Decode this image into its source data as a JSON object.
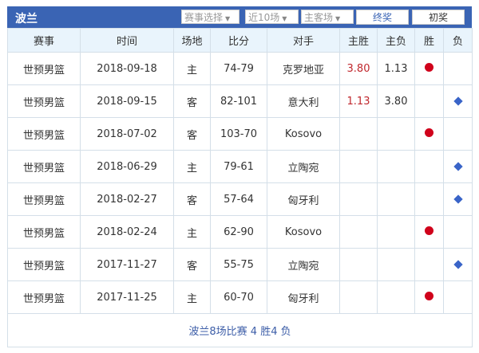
{
  "header": {
    "title": "波兰",
    "filters": [
      "赛事选择",
      "近10场",
      "主客场"
    ],
    "buttons": [
      "终奖",
      "初奖"
    ]
  },
  "columns": [
    "赛事",
    "时间",
    "场地",
    "比分",
    "对手",
    "主胜",
    "主负",
    "胜",
    "负"
  ],
  "rows": [
    {
      "league": "世预男篮",
      "date": "2018-09-18",
      "venue": "主",
      "score": "74-79",
      "opponent": "克罗地亚",
      "home_win": "3.80",
      "home_loss": "1.13",
      "result": "win"
    },
    {
      "league": "世预男篮",
      "date": "2018-09-15",
      "venue": "客",
      "score": "82-101",
      "opponent": "意大利",
      "home_win": "1.13",
      "home_loss": "3.80",
      "result": "loss"
    },
    {
      "league": "世预男篮",
      "date": "2018-07-02",
      "venue": "客",
      "score": "103-70",
      "opponent": "Kosovo",
      "home_win": "",
      "home_loss": "",
      "result": "win"
    },
    {
      "league": "世预男篮",
      "date": "2018-06-29",
      "venue": "主",
      "score": "79-61",
      "opponent": "立陶宛",
      "home_win": "",
      "home_loss": "",
      "result": "loss"
    },
    {
      "league": "世预男篮",
      "date": "2018-02-27",
      "venue": "客",
      "score": "57-64",
      "opponent": "匈牙利",
      "home_win": "",
      "home_loss": "",
      "result": "loss"
    },
    {
      "league": "世预男篮",
      "date": "2018-02-24",
      "venue": "主",
      "score": "62-90",
      "opponent": "Kosovo",
      "home_win": "",
      "home_loss": "",
      "result": "win"
    },
    {
      "league": "世预男篮",
      "date": "2017-11-27",
      "venue": "客",
      "score": "55-75",
      "opponent": "立陶宛",
      "home_win": "",
      "home_loss": "",
      "result": "loss"
    },
    {
      "league": "世预男篮",
      "date": "2017-11-25",
      "venue": "主",
      "score": "60-70",
      "opponent": "匈牙利",
      "home_win": "",
      "home_loss": "",
      "result": "win"
    }
  ],
  "summary": "波兰8场比赛 4 胜4 负",
  "colors": {
    "header_bar": "#3a64b4",
    "win_marker": "#d0021b",
    "loss_marker": "#3a64c8",
    "odds_red": "#c0272d"
  }
}
